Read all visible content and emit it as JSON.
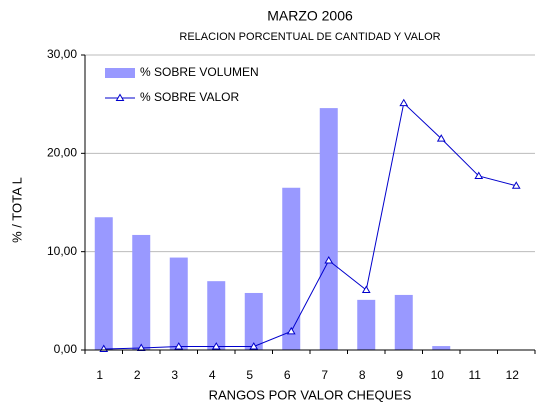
{
  "chart_data": {
    "type": "bar-line",
    "title": "MARZO 2006",
    "subtitle": "RELACION PORCENTUAL DE CANTIDAD Y VALOR",
    "x_label": "RANGOS POR VALOR CHEQUES",
    "y_label": "%  /    TOTA L",
    "categories": [
      "1",
      "2",
      "3",
      "4",
      "5",
      "6",
      "7",
      "8",
      "9",
      "10",
      "11",
      "12"
    ],
    "series": [
      {
        "name": "% SOBRE VOLUMEN",
        "type": "bar",
        "color": "#9999ff",
        "values": [
          13.5,
          11.7,
          9.4,
          7.0,
          5.8,
          16.5,
          24.6,
          5.1,
          5.6,
          0.4,
          0,
          0
        ]
      },
      {
        "name": "% SOBRE VALOR",
        "type": "line",
        "color": "#0000cc",
        "values": [
          0.1,
          0.2,
          0.35,
          0.35,
          0.35,
          1.9,
          9.1,
          6.1,
          25.1,
          21.5,
          17.7,
          16.7
        ]
      }
    ],
    "ylim": [
      0,
      30
    ],
    "yticks": [
      {
        "value": 0,
        "label": "0,00"
      },
      {
        "value": 10,
        "label": "10,00"
      },
      {
        "value": 20,
        "label": "20,00"
      },
      {
        "value": 30,
        "label": "30,00"
      }
    ],
    "grid": true,
    "legend": "upper-left"
  }
}
